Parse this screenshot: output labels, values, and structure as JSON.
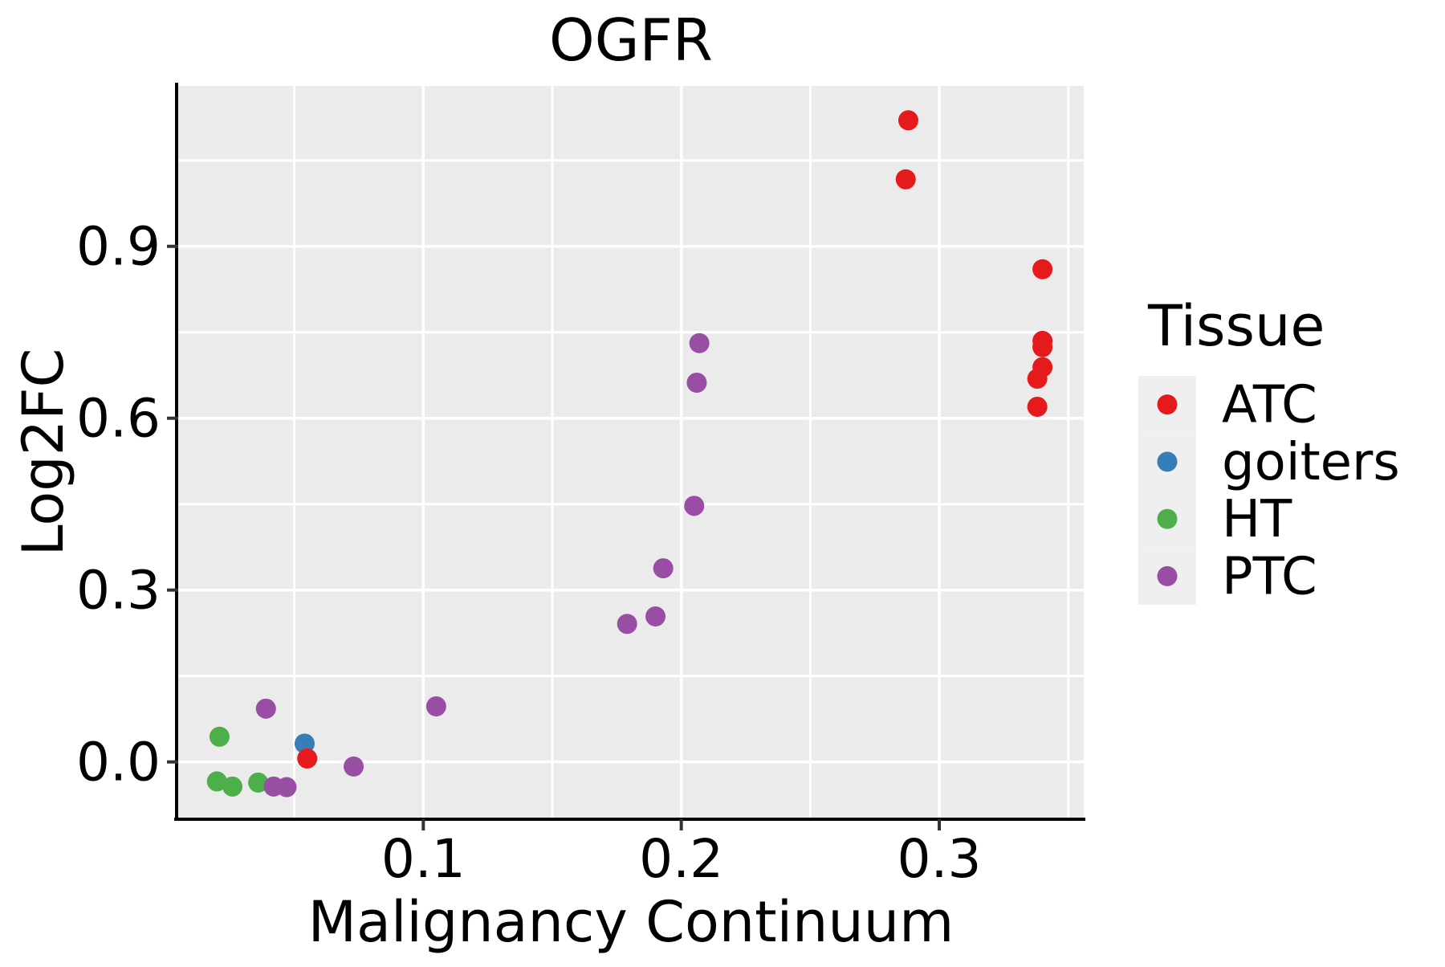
{
  "title": "OGFR",
  "axes": {
    "x": {
      "label": "Malignancy Continuum",
      "tick_labels": [
        "0.1",
        "0.2",
        "0.3"
      ],
      "ticks": [
        0.1,
        0.2,
        0.3
      ],
      "minor_ticks": [
        0.05,
        0.15,
        0.25,
        0.35
      ]
    },
    "y": {
      "label": "Log2FC",
      "tick_labels": [
        "0.0",
        "0.3",
        "0.6",
        "0.9"
      ],
      "ticks": [
        0.0,
        0.3,
        0.6,
        0.9
      ],
      "minor_ticks": [
        0.15,
        0.45,
        0.75,
        1.05
      ]
    }
  },
  "legend": {
    "title": "Tissue",
    "items": [
      {
        "label": "ATC",
        "color": "#E41A1C"
      },
      {
        "label": "goiters",
        "color": "#377EB8"
      },
      {
        "label": "HT",
        "color": "#4DAF4A"
      },
      {
        "label": "PTC",
        "color": "#984EA3"
      }
    ]
  },
  "style": {
    "panel_bg": "#EBEBEB",
    "grid_color": "#FFFFFF",
    "legend_key_bg": "#EFEFEF",
    "axis_line_color": "#000000",
    "tick_mark_color": "#333333",
    "marker_radius": 12.5
  },
  "chart_data": {
    "type": "scatter",
    "title": "OGFR",
    "xlabel": "Malignancy Continuum",
    "ylabel": "Log2FC",
    "xlim": [
      0.005,
      0.356
    ],
    "ylim": [
      -0.1,
      1.18
    ],
    "x_ticks": [
      0.1,
      0.2,
      0.3
    ],
    "y_ticks": [
      0.0,
      0.3,
      0.6,
      0.9
    ],
    "grid": true,
    "legend_position": "right",
    "legend_title": "Tissue",
    "series": [
      {
        "name": "ATC",
        "color": "#E41A1C",
        "points": [
          [
            0.288,
            1.12
          ],
          [
            0.287,
            1.017
          ],
          [
            0.34,
            0.86
          ],
          [
            0.34,
            0.735
          ],
          [
            0.34,
            0.724
          ],
          [
            0.34,
            0.689
          ],
          [
            0.338,
            0.669
          ],
          [
            0.338,
            0.62
          ],
          [
            0.055,
            0.006
          ]
        ]
      },
      {
        "name": "goiters",
        "color": "#377EB8",
        "points": [
          [
            0.054,
            0.032
          ]
        ]
      },
      {
        "name": "HT",
        "color": "#4DAF4A",
        "points": [
          [
            0.021,
            0.044
          ],
          [
            0.02,
            -0.034
          ],
          [
            0.026,
            -0.043
          ],
          [
            0.036,
            -0.036
          ]
        ]
      },
      {
        "name": "PTC",
        "color": "#984EA3",
        "points": [
          [
            0.039,
            0.093
          ],
          [
            0.042,
            -0.043
          ],
          [
            0.047,
            -0.044
          ],
          [
            0.073,
            -0.008
          ],
          [
            0.105,
            0.097
          ],
          [
            0.179,
            0.241
          ],
          [
            0.19,
            0.254
          ],
          [
            0.193,
            0.338
          ],
          [
            0.205,
            0.447
          ],
          [
            0.206,
            0.662
          ],
          [
            0.207,
            0.731
          ]
        ]
      }
    ],
    "draw_order": [
      "goiters",
      "HT",
      "PTC",
      "ATC"
    ]
  }
}
